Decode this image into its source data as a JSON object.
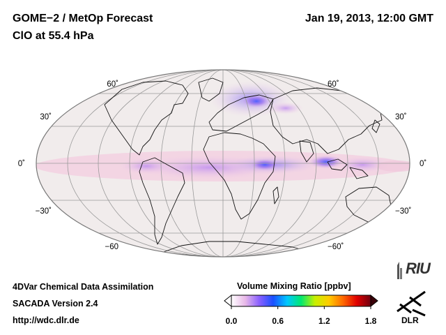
{
  "header": {
    "title": "GOME−2 / MetOp Forecast",
    "subtitle": "ClO at 55.4 hPa",
    "datetime": "Jan 19, 2013, 12:00 GMT"
  },
  "map": {
    "projection": "Mollweide",
    "lat_labels_left": [
      "60˚",
      "30˚",
      "0˚",
      "−30˚",
      "−60"
    ],
    "lat_labels_right": [
      "60˚",
      "30˚",
      "0˚",
      "−30˚",
      "−60˚"
    ],
    "ocean_color": "#f1ecec",
    "field_color": "#f5d6df"
  },
  "footer": {
    "line1": "4DVar Chemical Data Assimilation",
    "line2": "SACADA Version 2.4",
    "line3": "http://wdc.dlr.de"
  },
  "colorbar": {
    "title": "Volume Mixing Ratio [ppbv]",
    "ticks": [
      "0.0",
      "0.6",
      "1.2",
      "1.8"
    ],
    "tick_values": [
      0.0,
      0.6,
      1.2,
      1.8
    ],
    "range": [
      0.0,
      1.8
    ],
    "colors": [
      "#ffffff",
      "#e8b8e8",
      "#8a60ff",
      "#1a50ff",
      "#00c8ff",
      "#00e870",
      "#c8f000",
      "#ffcc00",
      "#ff6a00",
      "#e00000",
      "#700010"
    ]
  },
  "logos": {
    "riu": "RIU",
    "dlr": "DLR"
  }
}
